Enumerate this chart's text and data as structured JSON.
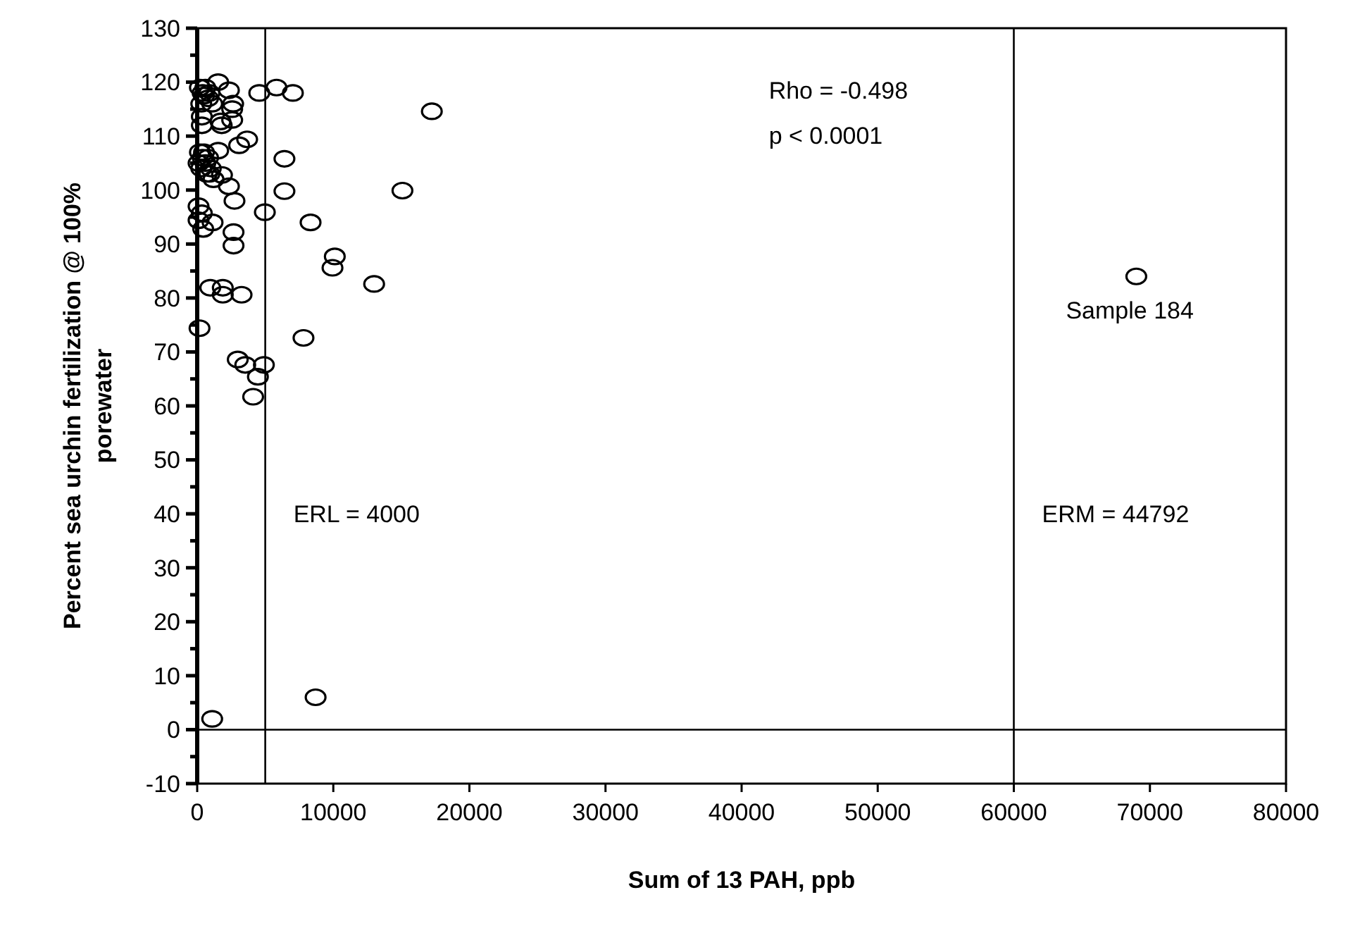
{
  "chart_data": {
    "type": "scatter",
    "xlabel": "Sum of 13 PAH, ppb",
    "ylabel": "Percent sea urchin fertilization @ 100% porewater",
    "xlim": [
      0,
      80000
    ],
    "ylim": [
      -10,
      130
    ],
    "xticks": [
      0,
      10000,
      20000,
      30000,
      40000,
      50000,
      60000,
      70000,
      80000
    ],
    "yticks": [
      -10,
      {
        "value": -5,
        "label": null
      },
      0,
      {
        "value": 5,
        "label": null
      },
      10,
      {
        "value": 15,
        "label": null
      },
      20,
      {
        "value": 25,
        "label": null
      },
      30,
      {
        "value": 35,
        "label": null
      },
      40,
      {
        "value": 45,
        "label": null
      },
      50,
      {
        "value": 55,
        "label": null
      },
      60,
      {
        "value": 65,
        "label": null
      },
      70,
      {
        "value": 75,
        "label": null
      },
      80,
      {
        "value": 85,
        "label": null
      },
      90,
      {
        "value": 95,
        "label": null
      },
      100,
      {
        "value": 105,
        "label": null
      },
      110,
      {
        "value": 115,
        "label": null
      },
      120,
      {
        "value": 125,
        "label": null
      },
      130
    ],
    "grid": false,
    "marker": "circle",
    "series": [
      {
        "color": "#000000",
        "x": [
          1540,
          2330,
          200,
          400,
          600,
          800,
          300,
          500,
          900,
          1100,
          4560,
          5830,
          7030,
          2640,
          2570,
          2570,
          1710,
          1800,
          340,
          340,
          3080,
          3670,
          1540,
          6410,
          200,
          400,
          600,
          800,
          1000,
          300,
          500,
          700,
          100,
          900,
          1820,
          1200,
          2330,
          6410,
          2740,
          4970,
          100,
          340,
          100,
          1130,
          440,
          2670,
          2670,
          8330,
          10110,
          9940,
          13000,
          960,
          1880,
          1880,
          3260,
          170,
          7810,
          2980,
          3530,
          4460,
          4900,
          4110,
          17240,
          15080,
          8700,
          1100,
          69000
        ],
        "values": [
          120,
          118.5,
          119,
          118,
          119,
          117,
          116,
          117.5,
          118,
          116,
          118,
          119,
          118,
          116,
          115,
          113,
          112.7,
          112,
          112,
          113.6,
          108.3,
          109.4,
          107.3,
          105.8,
          107,
          106,
          105,
          106,
          104,
          104,
          107,
          103,
          105,
          103,
          102.8,
          102,
          100.7,
          99.8,
          98,
          95.9,
          97,
          95.7,
          94.4,
          94,
          92.8,
          92.2,
          89.7,
          94,
          87.7,
          85.6,
          82.6,
          81.9,
          81.9,
          80.6,
          80.6,
          74.4,
          72.6,
          68.6,
          67.6,
          65.4,
          67.6,
          61.7,
          114.6,
          99.9,
          6,
          2,
          84
        ]
      }
    ],
    "ref_lines": [
      {
        "axis": "x",
        "value": 5000
      },
      {
        "axis": "x",
        "value": 60000
      },
      {
        "axis": "y",
        "value": 0
      }
    ],
    "annotations": [
      "Rho = -0.498",
      "p < 0.0001",
      {
        "text": "Sample 184",
        "x": 69000,
        "y": 84
      },
      {
        "text": "ERL = 4000",
        "x": 5000,
        "y": 40
      },
      {
        "text": "ERM = 44792",
        "x": 60000,
        "y": 40
      }
    ]
  }
}
